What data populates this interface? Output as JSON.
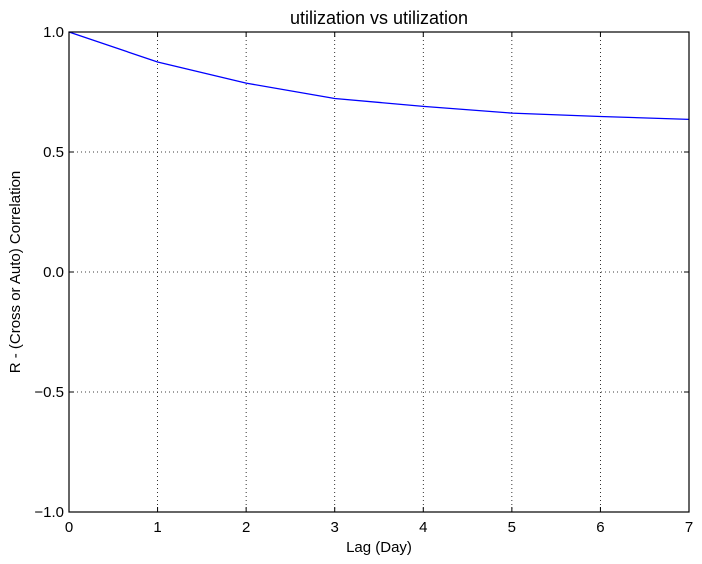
{
  "chart_data": {
    "type": "line",
    "title": "utilization vs utilization",
    "xlabel": "Lag (Day)",
    "ylabel": "R - (Cross or Auto) Correlation",
    "xlim": [
      0,
      7
    ],
    "ylim": [
      -1.0,
      1.0
    ],
    "x_ticks": [
      0,
      1,
      2,
      3,
      4,
      5,
      6,
      7
    ],
    "x_tick_labels": [
      "0",
      "1",
      "2",
      "3",
      "4",
      "5",
      "6",
      "7"
    ],
    "y_ticks": [
      -1.0,
      -0.5,
      0.0,
      0.5,
      1.0
    ],
    "y_tick_labels": [
      "−1.0",
      "−0.5",
      "0.0",
      "0.5",
      "1.0"
    ],
    "grid": true,
    "grid_style": "dotted",
    "legend": false,
    "series": [
      {
        "color": "#0000ff",
        "x": [
          0,
          1,
          2,
          3,
          4,
          5,
          6,
          7
        ],
        "y": [
          1.0,
          0.875,
          0.787,
          0.723,
          0.69,
          0.662,
          0.648,
          0.636
        ]
      }
    ]
  }
}
